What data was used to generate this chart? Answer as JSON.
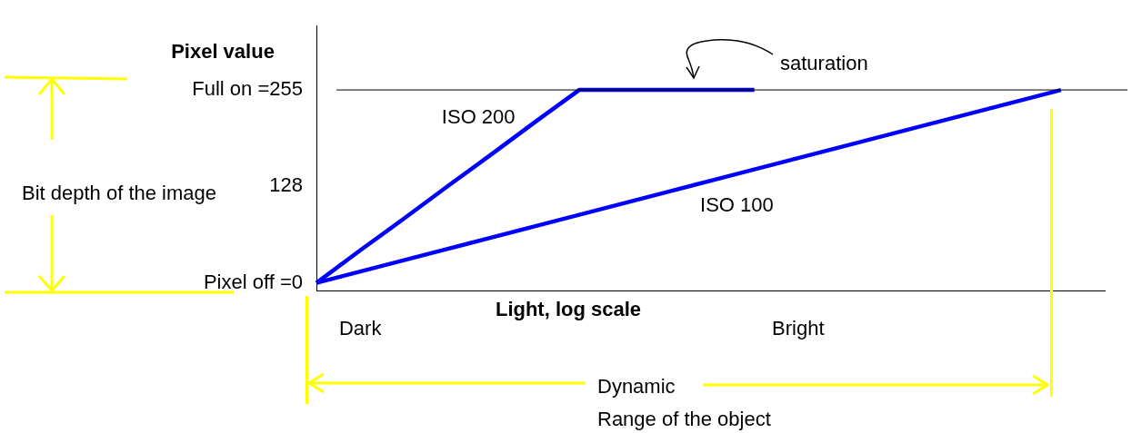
{
  "chart_data": {
    "type": "line",
    "ylabel": "Pixel value",
    "xlabel": "Light, log scale",
    "categories": [
      null,
      "Dark",
      null,
      null,
      null,
      null,
      null,
      null,
      null,
      null,
      null,
      "Bright",
      null,
      null,
      null,
      null,
      null,
      null,
      null
    ],
    "series": [
      {
        "name": "ISO 200",
        "color": "#0000ff",
        "values": [
          0,
          43,
          85,
          128,
          170,
          213,
          255,
          255,
          255,
          255,
          255,
          null,
          null,
          null,
          null,
          null,
          null,
          null,
          null
        ]
      },
      {
        "name": "ISO 100",
        "color": "#0000ff",
        "values": [
          0,
          15,
          30,
          45,
          60,
          75,
          90,
          105,
          120,
          135,
          150,
          165,
          180,
          195,
          210,
          225,
          240,
          255,
          null
        ]
      }
    ],
    "ylim": [
      -10,
      340
    ],
    "yticks": [
      {
        "value": 0,
        "label": "Pixel off =0"
      },
      {
        "value": 128,
        "label": "128"
      },
      {
        "value": 255,
        "label": "Full on =255"
      }
    ],
    "ref_lines": [
      {
        "axis": "y",
        "value": 255,
        "color": "#000000"
      }
    ],
    "marker": "none",
    "annotations": [
      "saturation",
      "Bit depth of the image",
      "Dynamic Range of the object"
    ]
  }
}
